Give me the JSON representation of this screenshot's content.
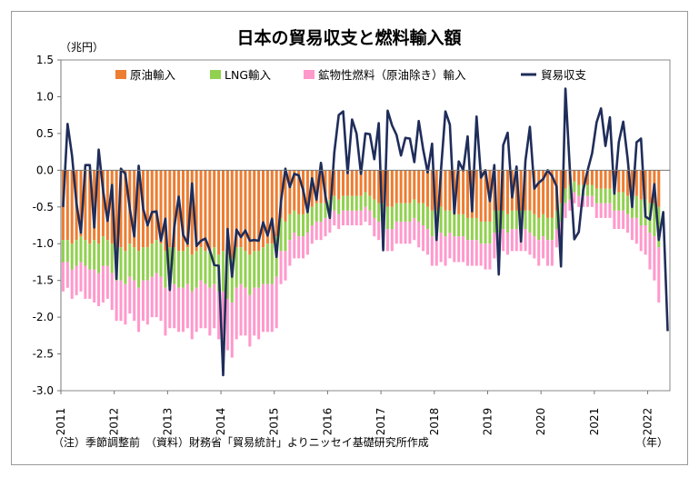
{
  "chart_data": {
    "type": "bar",
    "title": "日本の貿易収支と燃料輸入額",
    "unit_label": "（兆円）",
    "x_unit_label": "（年）",
    "note": "（注）季節調整前　（資料）財務省「貿易統計」よりニッセイ基礎研究所作成",
    "ylim": [
      -3.0,
      1.5
    ],
    "ytick_labels": [
      "1.5",
      "1.0",
      "0.5",
      "0.0",
      "-0.5",
      "-1.0",
      "-1.5",
      "-2.0",
      "-2.5",
      "-3.0"
    ],
    "xtick_labels": [
      "2011",
      "2012",
      "2013",
      "2014",
      "2015",
      "2016",
      "2017",
      "2018",
      "2019",
      "2020",
      "2021",
      "2022"
    ],
    "colors": {
      "crude": "#ed7d31",
      "lng": "#92d050",
      "mineral": "#ff99cc",
      "balance": "#1f2d5a"
    },
    "legend": {
      "crude": "原油輸入",
      "lng": "LNG輸入",
      "mineral": "鉱物性燃料（原油除き）輸入",
      "balance": "貿易収支"
    },
    "months_start": "2011-01",
    "months_end": "2022-01",
    "series": [
      {
        "name": "原油輸入",
        "values": [
          -0.95,
          -0.95,
          -1.0,
          -0.95,
          -0.9,
          -0.95,
          -1.0,
          -0.95,
          -1.0,
          -0.9,
          -0.95,
          -1.0,
          -1.05,
          -1.05,
          -1.1,
          -1.0,
          -1.05,
          -1.1,
          -1.05,
          -1.05,
          -1.0,
          -0.95,
          -1.0,
          -1.1,
          -1.05,
          -1.05,
          -1.1,
          -1.1,
          -1.05,
          -1.15,
          -1.1,
          -1.05,
          -1.1,
          -1.1,
          -1.05,
          -1.15,
          -1.1,
          -1.15,
          -1.2,
          -1.05,
          -1.05,
          -1.1,
          -1.15,
          -1.1,
          -1.1,
          -1.05,
          -1.0,
          -1.0,
          -0.9,
          -0.65,
          -0.7,
          -0.6,
          -0.55,
          -0.6,
          -0.6,
          -0.55,
          -0.5,
          -0.45,
          -0.45,
          -0.45,
          -0.4,
          -0.35,
          -0.4,
          -0.35,
          -0.35,
          -0.35,
          -0.35,
          -0.35,
          -0.3,
          -0.35,
          -0.4,
          -0.45,
          -0.45,
          -0.5,
          -0.5,
          -0.45,
          -0.45,
          -0.45,
          -0.45,
          -0.4,
          -0.45,
          -0.45,
          -0.5,
          -0.55,
          -0.55,
          -0.5,
          -0.55,
          -0.55,
          -0.6,
          -0.6,
          -0.6,
          -0.65,
          -0.65,
          -0.65,
          -0.7,
          -0.7,
          -0.7,
          -0.55,
          -0.55,
          -0.55,
          -0.6,
          -0.55,
          -0.55,
          -0.55,
          -0.55,
          -0.55,
          -0.6,
          -0.65,
          -0.6,
          -0.65,
          -0.65,
          -0.55,
          -0.45,
          -0.25,
          -0.2,
          -0.15,
          -0.2,
          -0.2,
          -0.2,
          -0.2,
          -0.25,
          -0.25,
          -0.25,
          -0.25,
          -0.3,
          -0.3,
          -0.3,
          -0.35,
          -0.35,
          -0.35,
          -0.4,
          -0.4,
          -0.45,
          -0.45,
          -0.5
        ]
      },
      {
        "name": "LNG輸入",
        "values": [
          -0.3,
          -0.3,
          -0.35,
          -0.35,
          -0.35,
          -0.35,
          -0.35,
          -0.4,
          -0.4,
          -0.4,
          -0.35,
          -0.4,
          -0.45,
          -0.45,
          -0.45,
          -0.45,
          -0.45,
          -0.5,
          -0.45,
          -0.45,
          -0.45,
          -0.45,
          -0.45,
          -0.5,
          -0.5,
          -0.5,
          -0.5,
          -0.5,
          -0.5,
          -0.5,
          -0.5,
          -0.45,
          -0.45,
          -0.5,
          -0.5,
          -0.5,
          -0.55,
          -0.6,
          -0.6,
          -0.55,
          -0.5,
          -0.5,
          -0.55,
          -0.5,
          -0.5,
          -0.5,
          -0.55,
          -0.55,
          -0.55,
          -0.45,
          -0.4,
          -0.35,
          -0.3,
          -0.3,
          -0.3,
          -0.3,
          -0.25,
          -0.25,
          -0.25,
          -0.2,
          -0.2,
          -0.2,
          -0.2,
          -0.2,
          -0.2,
          -0.2,
          -0.2,
          -0.2,
          -0.2,
          -0.2,
          -0.25,
          -0.25,
          -0.3,
          -0.3,
          -0.3,
          -0.25,
          -0.25,
          -0.25,
          -0.25,
          -0.25,
          -0.25,
          -0.3,
          -0.3,
          -0.35,
          -0.35,
          -0.35,
          -0.35,
          -0.3,
          -0.3,
          -0.3,
          -0.3,
          -0.3,
          -0.3,
          -0.3,
          -0.3,
          -0.3,
          -0.3,
          -0.3,
          -0.3,
          -0.25,
          -0.25,
          -0.25,
          -0.25,
          -0.25,
          -0.25,
          -0.3,
          -0.3,
          -0.3,
          -0.3,
          -0.3,
          -0.3,
          -0.25,
          -0.25,
          -0.2,
          -0.2,
          -0.15,
          -0.15,
          -0.15,
          -0.15,
          -0.15,
          -0.2,
          -0.2,
          -0.2,
          -0.2,
          -0.25,
          -0.25,
          -0.25,
          -0.25,
          -0.3,
          -0.3,
          -0.35,
          -0.35,
          -0.4,
          -0.45,
          -0.55
        ]
      },
      {
        "name": "鉱物性燃料（原油除き）輸入",
        "values": [
          -0.4,
          -0.35,
          -0.4,
          -0.4,
          -0.4,
          -0.45,
          -0.4,
          -0.45,
          -0.45,
          -0.5,
          -0.45,
          -0.5,
          -0.55,
          -0.55,
          -0.55,
          -0.5,
          -0.55,
          -0.6,
          -0.55,
          -0.6,
          -0.55,
          -0.6,
          -0.6,
          -0.65,
          -0.6,
          -0.6,
          -0.6,
          -0.6,
          -0.6,
          -0.65,
          -0.6,
          -0.65,
          -0.6,
          -0.65,
          -0.6,
          -0.65,
          -0.65,
          -0.7,
          -0.75,
          -0.7,
          -0.7,
          -0.65,
          -0.7,
          -0.65,
          -0.7,
          -0.65,
          -0.65,
          -0.65,
          -0.7,
          -0.45,
          -0.4,
          -0.35,
          -0.35,
          -0.3,
          -0.3,
          -0.3,
          -0.25,
          -0.25,
          -0.25,
          -0.25,
          -0.25,
          -0.2,
          -0.2,
          -0.2,
          -0.2,
          -0.2,
          -0.2,
          -0.2,
          -0.2,
          -0.2,
          -0.25,
          -0.25,
          -0.3,
          -0.3,
          -0.3,
          -0.3,
          -0.3,
          -0.3,
          -0.3,
          -0.3,
          -0.35,
          -0.35,
          -0.35,
          -0.4,
          -0.4,
          -0.4,
          -0.4,
          -0.35,
          -0.35,
          -0.35,
          -0.35,
          -0.35,
          -0.35,
          -0.35,
          -0.3,
          -0.35,
          -0.35,
          -0.35,
          -0.35,
          -0.3,
          -0.3,
          -0.3,
          -0.3,
          -0.3,
          -0.3,
          -0.3,
          -0.3,
          -0.35,
          -0.3,
          -0.35,
          -0.35,
          -0.25,
          -0.25,
          -0.2,
          -0.15,
          -0.15,
          -0.15,
          -0.15,
          -0.15,
          -0.15,
          -0.2,
          -0.2,
          -0.2,
          -0.2,
          -0.25,
          -0.25,
          -0.25,
          -0.25,
          -0.3,
          -0.35,
          -0.35,
          -0.4,
          -0.5,
          -0.6,
          -0.75
        ]
      },
      {
        "name": "貿易収支",
        "values": [
          -0.5,
          0.63,
          0.2,
          -0.45,
          -0.85,
          0.07,
          0.07,
          -0.78,
          0.28,
          -0.28,
          -0.69,
          -0.2,
          -1.48,
          0.02,
          -0.05,
          -0.52,
          -0.9,
          0.06,
          -0.52,
          -0.75,
          -0.57,
          -0.56,
          -0.96,
          -0.66,
          -1.63,
          -0.78,
          -0.36,
          -0.88,
          -1.0,
          -0.18,
          -1.03,
          -0.96,
          -0.93,
          -1.09,
          -1.29,
          -1.3,
          -2.79,
          -0.8,
          -1.45,
          -0.81,
          -0.91,
          -0.82,
          -0.96,
          -0.95,
          -0.96,
          -0.71,
          -0.89,
          -0.66,
          -1.18,
          -0.43,
          0.02,
          -0.23,
          -0.05,
          -0.07,
          -0.27,
          -0.57,
          -0.11,
          -0.4,
          0.1,
          -0.35,
          -0.65,
          0.24,
          0.75,
          0.8,
          -0.04,
          0.69,
          0.5,
          -0.05,
          0.5,
          0.49,
          0.15,
          0.64,
          -1.09,
          0.81,
          0.61,
          0.48,
          0.2,
          0.44,
          0.43,
          0.11,
          0.67,
          0.28,
          -0.03,
          0.36,
          -0.95,
          0.0,
          0.8,
          0.62,
          -0.59,
          0.12,
          0.0,
          0.46,
          -0.56,
          0.73,
          -0.1,
          0.0,
          -0.42,
          0.07,
          -1.42,
          0.34,
          0.51,
          -0.37,
          0.05,
          -0.97,
          0.13,
          0.59,
          -0.25,
          -0.17,
          -0.12,
          0.0,
          -0.08,
          -0.22,
          -1.31,
          1.11,
          0.0,
          -0.94,
          -0.84,
          -0.27,
          0.0,
          0.23,
          0.65,
          0.84,
          0.33,
          0.72,
          -0.32,
          0.38,
          0.66,
          0.15,
          -0.5,
          0.38,
          0.43,
          -0.63,
          -0.67,
          -0.19,
          -0.95,
          -0.57,
          -2.19
        ]
      }
    ]
  }
}
